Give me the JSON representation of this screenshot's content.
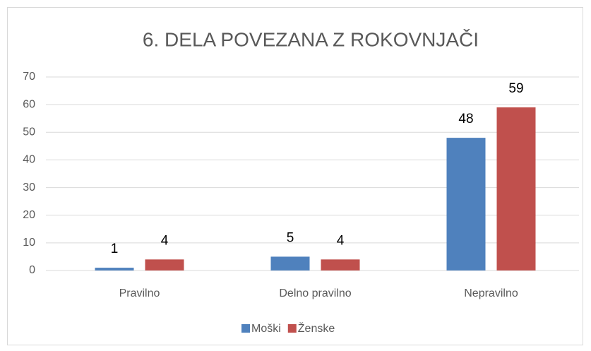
{
  "chart_data": {
    "type": "bar",
    "title": "6. DELA POVEZANA Z ROKOVNJAČI",
    "categories": [
      "Pravilno",
      "Delno pravilno",
      "Nepravilno"
    ],
    "series": [
      {
        "name": "Moški",
        "color": "#4f81bd",
        "values": [
          1,
          5,
          48
        ]
      },
      {
        "name": "Ženske",
        "color": "#c0504d",
        "values": [
          4,
          4,
          59
        ]
      }
    ],
    "ylim": [
      0,
      70
    ],
    "yticks": [
      0,
      10,
      20,
      30,
      40,
      50,
      60,
      70
    ],
    "grid": true,
    "legend": "bottom"
  }
}
